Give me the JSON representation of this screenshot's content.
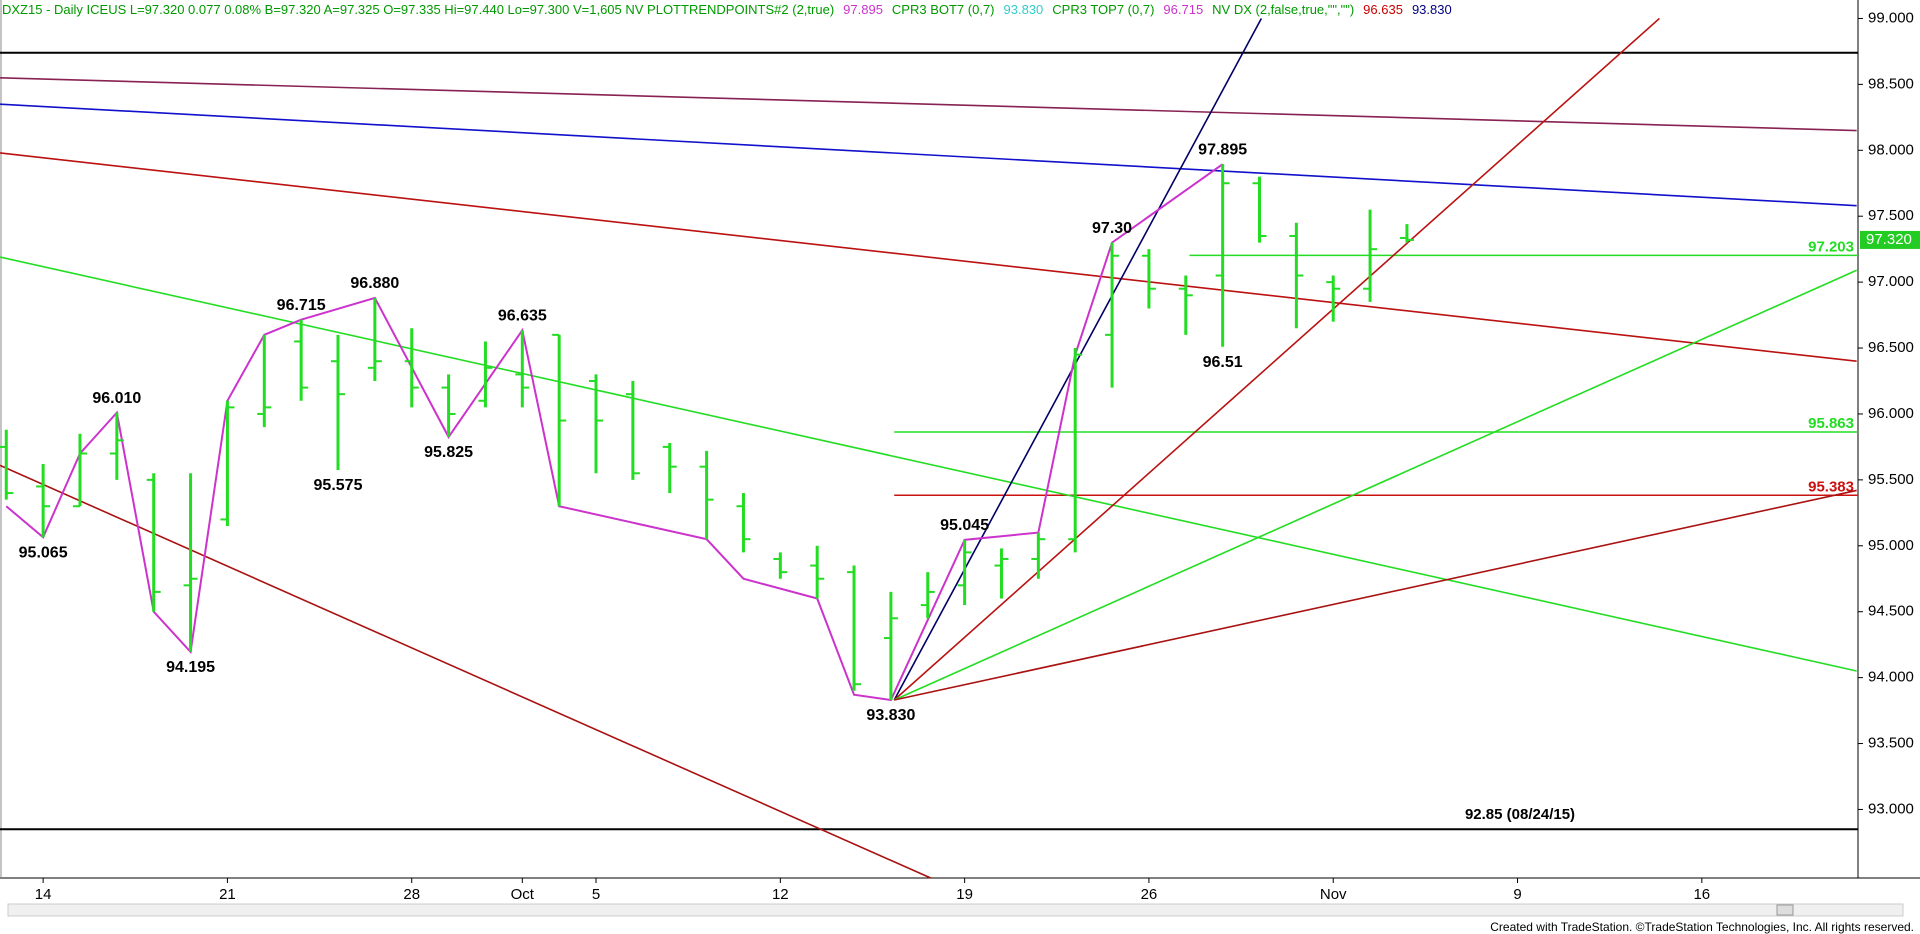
{
  "chart_data": {
    "type": "ohlc",
    "header": [
      {
        "text": "DXZ15 - Daily  ICEUS  L=97.320  0.077  0.08%  B=97.320  A=97.325  O=97.335  Hi=97.440  Lo=97.300  V=1,605  NV  PLOTTRENDPOINTS#2 (2,true)",
        "color": "#009900"
      },
      {
        "text": "97.895",
        "color": "#cc33cc"
      },
      {
        "text": "CPR3 BOT7 (0,7)",
        "color": "#009900"
      },
      {
        "text": "93.830",
        "color": "#33cccc"
      },
      {
        "text": "CPR3 TOP7 (0,7)",
        "color": "#009900"
      },
      {
        "text": "96.715",
        "color": "#cc33cc"
      },
      {
        "text": "NV DX (2,false,true,\"\",\"\")",
        "color": "#009900"
      },
      {
        "text": "96.635",
        "color": "#cc0000"
      },
      {
        "text": "93.830",
        "color": "#000080"
      }
    ],
    "categories": [
      null,
      "14",
      null,
      null,
      null,
      null,
      "21",
      null,
      null,
      null,
      null,
      "28",
      null,
      null,
      "Oct",
      null,
      "5",
      null,
      null,
      null,
      null,
      "12",
      null,
      null,
      null,
      null,
      "19",
      null,
      null,
      null,
      null,
      "26",
      null,
      null,
      null,
      null,
      "Nov",
      null,
      null,
      null,
      null,
      "9",
      null,
      null,
      null,
      null,
      "16",
      null,
      null,
      null,
      null
    ],
    "color": "#22dd22",
    "open": [
      95.75,
      95.45,
      95.3,
      95.7,
      95.5,
      94.7,
      95.2,
      96.0,
      96.55,
      96.4,
      96.35,
      96.4,
      96.2,
      96.1,
      96.3,
      96.6,
      96.25,
      96.15,
      95.75,
      95.6,
      95.3,
      94.9,
      94.85,
      94.8,
      94.3,
      94.55,
      94.7,
      94.85,
      94.9,
      95.05,
      96.6,
      97.2,
      96.95,
      97.05,
      97.75,
      97.35,
      97.0,
      96.95,
      97.335,
      null,
      null,
      null,
      null,
      null,
      null,
      null,
      null,
      null,
      null,
      null,
      null
    ],
    "high": [
      95.88,
      95.62,
      95.85,
      96.01,
      95.55,
      95.55,
      96.1,
      96.6,
      96.715,
      96.6,
      96.88,
      96.65,
      96.3,
      96.55,
      96.635,
      96.6,
      96.3,
      96.25,
      95.78,
      95.72,
      95.4,
      94.95,
      95.0,
      94.85,
      94.65,
      94.8,
      95.045,
      94.98,
      95.1,
      96.5,
      97.3,
      97.25,
      97.05,
      97.895,
      97.8,
      97.45,
      97.05,
      97.55,
      97.44,
      null,
      null,
      null,
      null,
      null,
      null,
      null,
      null,
      null,
      null,
      null,
      null
    ],
    "low": [
      95.35,
      95.065,
      95.3,
      95.5,
      94.5,
      94.195,
      95.15,
      95.9,
      96.1,
      95.575,
      96.25,
      96.05,
      95.825,
      96.05,
      96.05,
      95.3,
      95.55,
      95.5,
      95.4,
      95.05,
      94.95,
      94.75,
      94.6,
      93.9,
      93.83,
      94.45,
      94.55,
      94.6,
      94.75,
      94.95,
      96.2,
      96.8,
      96.6,
      96.51,
      97.3,
      96.65,
      96.7,
      96.85,
      97.3,
      null,
      null,
      null,
      null,
      null,
      null,
      null,
      null,
      null,
      null,
      null,
      null
    ],
    "close": [
      95.4,
      95.3,
      95.7,
      95.8,
      94.65,
      94.75,
      96.05,
      96.05,
      96.2,
      96.15,
      96.4,
      96.2,
      96.0,
      96.35,
      96.2,
      95.95,
      95.95,
      95.55,
      95.6,
      95.35,
      95.05,
      94.8,
      94.75,
      93.95,
      94.45,
      94.65,
      94.95,
      94.9,
      95.05,
      96.45,
      97.2,
      96.95,
      96.9,
      97.75,
      97.35,
      97.05,
      96.95,
      97.25,
      97.32,
      null,
      null,
      null,
      null,
      null,
      null,
      null,
      null,
      null,
      null,
      null,
      null
    ],
    "pivot_line": {
      "color": "#cc33cc",
      "x": [
        0,
        1,
        2,
        3,
        4,
        5,
        6,
        7,
        8,
        10,
        12,
        14,
        15,
        19,
        20,
        22,
        23,
        24,
        26,
        28,
        29,
        30,
        33
      ],
      "values": [
        95.3,
        95.065,
        95.7,
        96.01,
        94.5,
        94.195,
        96.1,
        96.6,
        96.715,
        96.88,
        95.825,
        96.635,
        95.3,
        95.05,
        94.75,
        94.6,
        93.87,
        93.83,
        95.045,
        95.1,
        96.45,
        97.3,
        97.895
      ]
    },
    "annotations": [
      {
        "text": "95.065",
        "value": 95.065,
        "index": 1
      },
      {
        "text": "96.010",
        "value": 96.01,
        "index": 3
      },
      {
        "text": "94.195",
        "value": 94.195,
        "index": 5
      },
      {
        "text": "96.715",
        "value": 96.715,
        "index": 8
      },
      {
        "text": "95.575",
        "value": 95.575,
        "index": 9
      },
      {
        "text": "96.880",
        "value": 96.88,
        "index": 10
      },
      {
        "text": "95.825",
        "value": 95.825,
        "index": 12
      },
      {
        "text": "96.635",
        "value": 96.635,
        "index": 14
      },
      {
        "text": "93.830",
        "value": 93.83,
        "index": 24
      },
      {
        "text": "95.045",
        "value": 95.045,
        "index": 26
      },
      {
        "text": "97.30",
        "value": 97.3,
        "index": 30
      },
      {
        "text": "97.895",
        "value": 97.895,
        "index": 33
      },
      {
        "text": "96.51",
        "value": 96.51,
        "index": 33
      }
    ],
    "trendlines": [
      {
        "color": "#aa1111",
        "start": {
          "index": -0.17,
          "value": 95.61
        },
        "end": {
          "index": 25.08,
          "value": 92.48
        }
      },
      {
        "color": "#22dd22",
        "start": {
          "index": -0.17,
          "value": 97.19
        },
        "end": {
          "index": 50.2,
          "value": 94.05
        }
      },
      {
        "color": "#bb1111",
        "start": {
          "index": -0.17,
          "value": 97.98
        },
        "end": {
          "index": 50.2,
          "value": 96.4
        }
      },
      {
        "color": "#1111cc",
        "start": {
          "index": -0.17,
          "value": 98.35
        },
        "end": {
          "index": 50.2,
          "value": 97.58
        }
      },
      {
        "color": "#882255",
        "start": {
          "index": -0.17,
          "value": 98.55
        },
        "end": {
          "index": 50.2,
          "value": 98.15
        }
      },
      {
        "color": "#000066",
        "start": {
          "index": 24.09,
          "value": 93.83
        },
        "end": {
          "index": 34.05,
          "value": 99.0
        }
      },
      {
        "color": "#bb1111",
        "start": {
          "index": 24.09,
          "value": 93.83
        },
        "end": {
          "index": 44.85,
          "value": 99.0
        }
      },
      {
        "color": "#22dd22",
        "start": {
          "index": 24.09,
          "value": 93.83
        },
        "end": {
          "index": 50.2,
          "value": 97.09
        }
      },
      {
        "color": "#aa1111",
        "start": {
          "index": 24.09,
          "value": 93.83
        },
        "end": {
          "index": 50.2,
          "value": 95.42
        }
      }
    ],
    "levels": [
      {
        "value": 98.74,
        "color": "#000000",
        "start": -0.17
      },
      {
        "value": 92.85,
        "color": "#000000",
        "start": -0.17,
        "label": "92.85 (08/24/15)"
      },
      {
        "value": 97.203,
        "color": "#22dd22",
        "start": 32.1,
        "label": "97.203"
      },
      {
        "value": 95.863,
        "color": "#22dd22",
        "start": 24.09,
        "label": "95.863"
      },
      {
        "value": 95.383,
        "color": "#cc1111",
        "start": 24.09,
        "label": "95.383"
      }
    ],
    "last_price": {
      "value": 97.32,
      "label": "97.320",
      "color": "#22cc22"
    },
    "ylim": [
      92.48,
      99.14
    ],
    "yticks": [
      {
        "value": 93,
        "label": "93.000"
      },
      {
        "value": 93.5,
        "label": "93.500"
      },
      {
        "value": 94,
        "label": "94.000"
      },
      {
        "value": 94.5,
        "label": "94.500"
      },
      {
        "value": 95,
        "label": "95.000"
      },
      {
        "value": 95.5,
        "label": "95.500"
      },
      {
        "value": 96,
        "label": "96.000"
      },
      {
        "value": 96.5,
        "label": "96.500"
      },
      {
        "value": 97,
        "label": "97.000"
      },
      {
        "value": 97.5,
        "label": "97.500"
      },
      {
        "value": 98,
        "label": "98.000"
      },
      {
        "value": 98.5,
        "label": "98.500"
      },
      {
        "value": 99,
        "label": "99.000"
      }
    ],
    "footer": "Created with TradeStation. ©TradeStation Technologies, Inc. All rights reserved."
  }
}
